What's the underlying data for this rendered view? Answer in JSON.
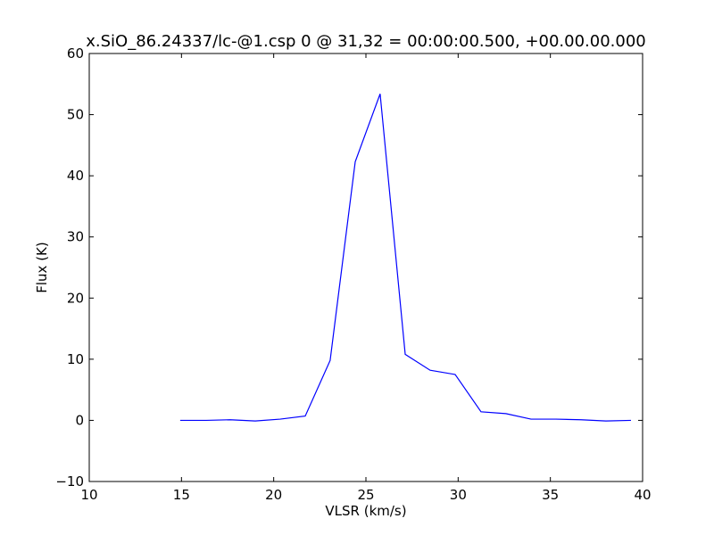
{
  "chart_data": {
    "type": "line",
    "title": "x.SiO_86.24337/lc-@1.csp 0 @ 31,32 = 00:00:00.500, +00.00.00.000",
    "xlabel": "VLSR (km/s)",
    "ylabel": "Flux (K)",
    "x": [
      14.93,
      16.34,
      17.64,
      19.0,
      20.35,
      21.71,
      23.06,
      24.42,
      25.77,
      27.13,
      28.48,
      29.84,
      31.24,
      32.59,
      33.95,
      35.3,
      36.66,
      38.01,
      39.37
    ],
    "series": [
      {
        "name": "Flux",
        "color": "#0000ff",
        "values": [
          0,
          0,
          0.1,
          -0.1,
          0.2,
          0.7,
          9.8,
          42.3,
          53.4,
          10.8,
          8.2,
          7.5,
          1.4,
          1.1,
          0.2,
          0.2,
          0.1,
          -0.1,
          0
        ]
      }
    ],
    "xlim": [
      10,
      40
    ],
    "xticks": [
      10,
      15,
      20,
      25,
      30,
      35,
      40
    ],
    "ylim": [
      -10,
      60
    ],
    "yticks": [
      {
        "value": -10,
        "label": "−10"
      },
      0,
      10,
      20,
      30,
      40,
      50,
      60
    ]
  }
}
